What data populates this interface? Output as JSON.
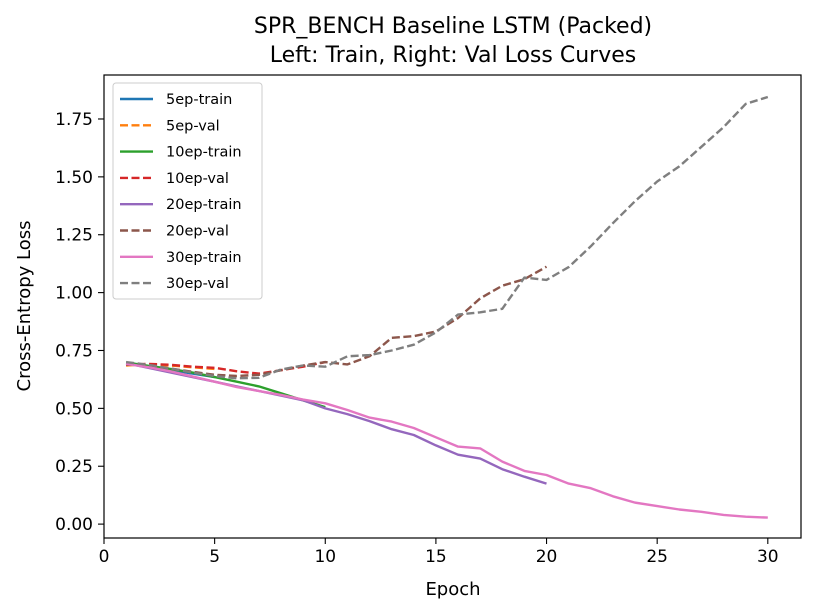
{
  "chart_data": {
    "type": "line",
    "title": "SPR_BENCH Baseline LSTM (Packed)",
    "subtitle": "Left: Train, Right: Val Loss Curves",
    "xlabel": "Epoch",
    "ylabel": "Cross-Entropy Loss",
    "xlim": [
      0.0,
      31.5
    ],
    "ylim": [
      -0.06,
      1.94
    ],
    "xticks": [
      0,
      5,
      10,
      15,
      20,
      25,
      30
    ],
    "yticks": [
      0.0,
      0.25,
      0.5,
      0.75,
      1.0,
      1.25,
      1.5,
      1.75
    ],
    "xtick_labels": [
      "0",
      "5",
      "10",
      "15",
      "20",
      "25",
      "30"
    ],
    "ytick_labels": [
      "0.00",
      "0.25",
      "0.50",
      "0.75",
      "1.00",
      "1.25",
      "1.50",
      "1.75"
    ],
    "grid": false,
    "legend_position": "top-left",
    "series": [
      {
        "name": "5ep-train",
        "color": "#1f77b4",
        "style": "solid",
        "x": [
          1,
          2,
          3,
          4,
          5
        ],
        "y": [
          0.693,
          0.68,
          0.665,
          0.65,
          0.635
        ]
      },
      {
        "name": "5ep-val",
        "color": "#ff7f0e",
        "style": "dashed",
        "x": [
          1,
          2,
          3,
          4,
          5
        ],
        "y": [
          0.685,
          0.69,
          0.685,
          0.678,
          0.67
        ]
      },
      {
        "name": "10ep-train",
        "color": "#2ca02c",
        "style": "solid",
        "x": [
          1,
          2,
          3,
          4,
          5,
          6,
          7,
          8,
          9,
          10
        ],
        "y": [
          0.698,
          0.684,
          0.67,
          0.655,
          0.635,
          0.615,
          0.595,
          0.565,
          0.535,
          0.505
        ]
      },
      {
        "name": "10ep-val",
        "color": "#d62728",
        "style": "dashed",
        "x": [
          1,
          2,
          3,
          4,
          5,
          6,
          7,
          8,
          9,
          10
        ],
        "y": [
          0.688,
          0.692,
          0.688,
          0.68,
          0.675,
          0.66,
          0.65,
          0.665,
          0.68,
          0.7
        ]
      },
      {
        "name": "20ep-train",
        "color": "#9467bd",
        "style": "solid",
        "x": [
          1,
          2,
          3,
          4,
          5,
          6,
          7,
          8,
          9,
          10,
          11,
          12,
          13,
          14,
          15,
          16,
          17,
          18,
          19,
          20
        ],
        "y": [
          0.695,
          0.675,
          0.655,
          0.635,
          0.615,
          0.595,
          0.575,
          0.555,
          0.535,
          0.5,
          0.475,
          0.445,
          0.41,
          0.385,
          0.34,
          0.3,
          0.283,
          0.237,
          0.205,
          0.175
        ]
      },
      {
        "name": "20ep-val",
        "color": "#8c564b",
        "style": "dashed",
        "x": [
          1,
          2,
          3,
          4,
          5,
          6,
          7,
          8,
          9,
          10,
          11,
          12,
          13,
          14,
          15,
          16,
          17,
          18,
          19,
          20
        ],
        "y": [
          0.69,
          0.685,
          0.672,
          0.658,
          0.645,
          0.64,
          0.645,
          0.665,
          0.685,
          0.7,
          0.69,
          0.725,
          0.805,
          0.812,
          0.832,
          0.89,
          0.975,
          1.03,
          1.058,
          1.112
        ]
      },
      {
        "name": "30ep-train",
        "color": "#e377c2",
        "style": "solid",
        "x": [
          1,
          2,
          3,
          4,
          5,
          6,
          7,
          8,
          9,
          10,
          11,
          12,
          13,
          14,
          15,
          16,
          17,
          18,
          19,
          20,
          21,
          22,
          23,
          24,
          25,
          26,
          27,
          28,
          29,
          30
        ],
        "y": [
          0.692,
          0.678,
          0.66,
          0.638,
          0.615,
          0.592,
          0.575,
          0.558,
          0.538,
          0.522,
          0.493,
          0.46,
          0.443,
          0.415,
          0.375,
          0.335,
          0.327,
          0.27,
          0.23,
          0.212,
          0.175,
          0.155,
          0.12,
          0.093,
          0.078,
          0.063,
          0.053,
          0.04,
          0.032,
          0.028
        ]
      },
      {
        "name": "30ep-val",
        "color": "#7f7f7f",
        "style": "dashed",
        "x": [
          1,
          2,
          3,
          4,
          5,
          6,
          7,
          8,
          9,
          10,
          11,
          12,
          13,
          14,
          15,
          16,
          17,
          18,
          19,
          20,
          21,
          22,
          23,
          24,
          25,
          26,
          27,
          28,
          29,
          30
        ],
        "y": [
          0.7,
          0.688,
          0.672,
          0.655,
          0.64,
          0.63,
          0.632,
          0.668,
          0.685,
          0.68,
          0.725,
          0.73,
          0.75,
          0.775,
          0.828,
          0.905,
          0.915,
          0.93,
          1.065,
          1.055,
          1.11,
          1.2,
          1.3,
          1.395,
          1.48,
          1.545,
          1.63,
          1.715,
          1.815,
          1.845
        ]
      }
    ]
  }
}
